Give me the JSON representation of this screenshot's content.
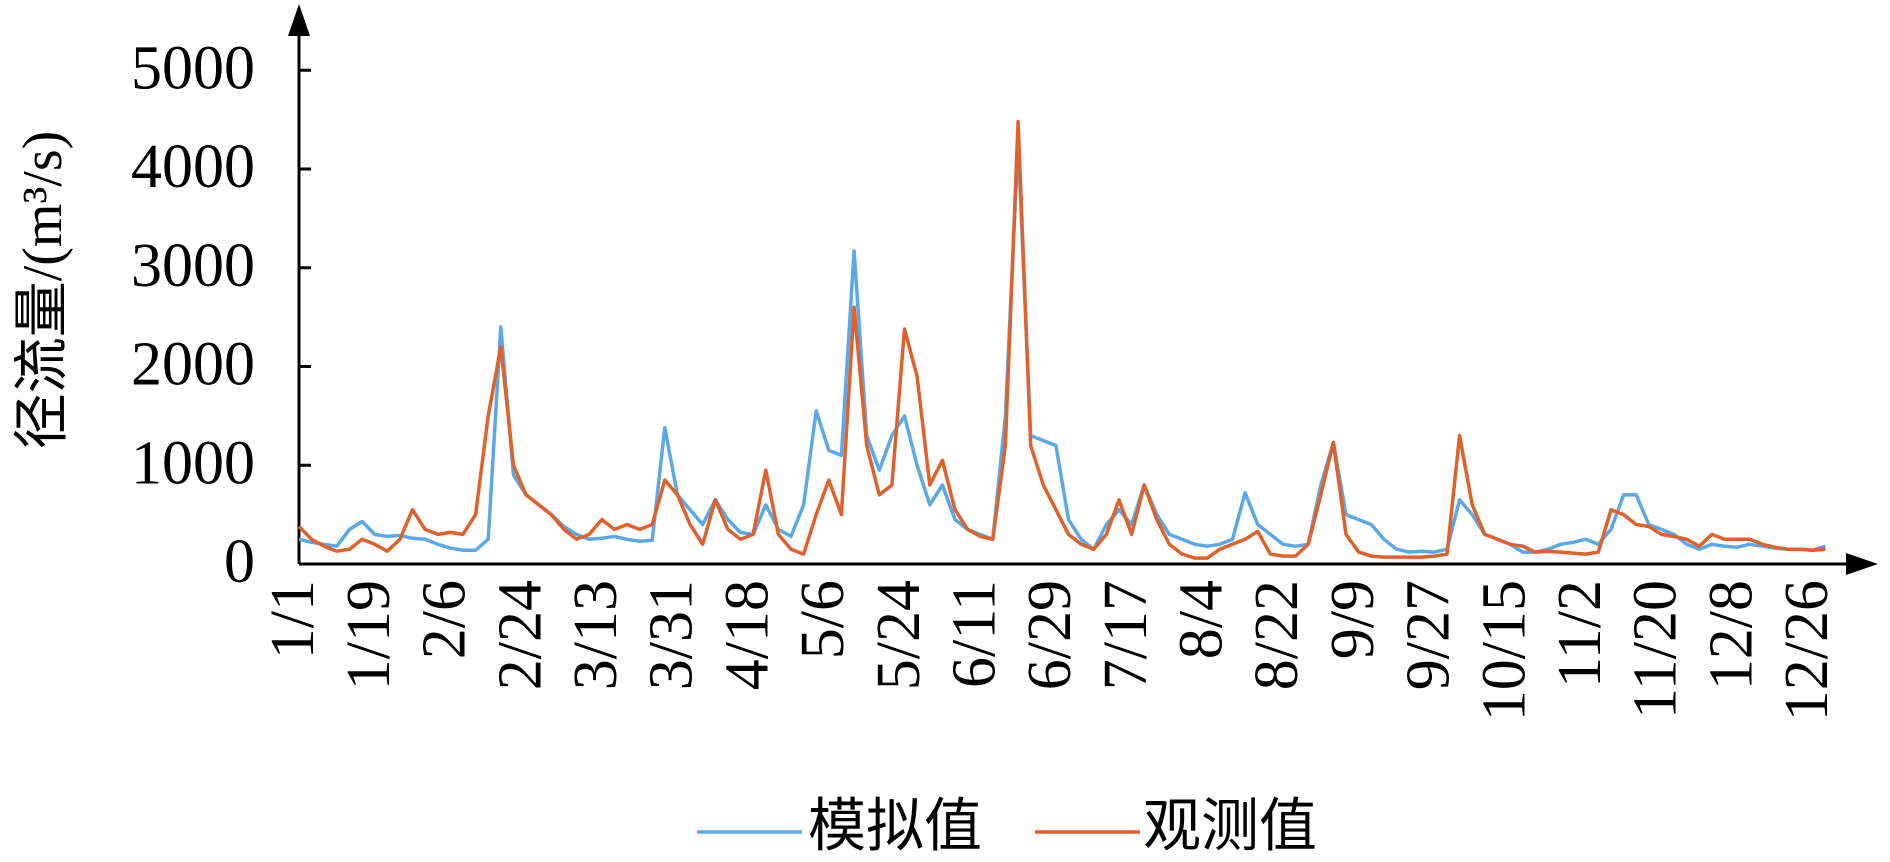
{
  "chart_data": {
    "type": "line",
    "y_label": "径流量/(m³/s)",
    "categories": [
      "1/1",
      null,
      null,
      null,
      null,
      null,
      "1/19",
      null,
      null,
      null,
      null,
      null,
      "2/6",
      null,
      null,
      null,
      null,
      null,
      "2/24",
      null,
      null,
      null,
      null,
      null,
      "3/13",
      null,
      null,
      null,
      null,
      null,
      "3/31",
      null,
      null,
      null,
      null,
      null,
      "4/18",
      null,
      null,
      null,
      null,
      null,
      "5/6",
      null,
      null,
      null,
      null,
      null,
      "5/24",
      null,
      null,
      null,
      null,
      null,
      "6/11",
      null,
      null,
      null,
      null,
      null,
      "6/29",
      null,
      null,
      null,
      null,
      null,
      "7/17",
      null,
      null,
      null,
      null,
      null,
      "8/4",
      null,
      null,
      null,
      null,
      null,
      "8/22",
      null,
      null,
      null,
      null,
      null,
      "9/9",
      null,
      null,
      null,
      null,
      null,
      "9/27",
      null,
      null,
      null,
      null,
      null,
      "10/15",
      null,
      null,
      null,
      null,
      null,
      "11/2",
      null,
      null,
      null,
      null,
      null,
      "11/20",
      null,
      null,
      null,
      null,
      null,
      "12/8",
      null,
      null,
      null,
      null,
      null,
      "12/26",
      null
    ],
    "series": [
      {
        "name": "模拟值",
        "color": "#5aa9e6",
        "values": [
          250,
          220,
          200,
          180,
          350,
          430,
          300,
          280,
          290,
          260,
          250,
          200,
          160,
          140,
          140,
          250,
          2400,
          900,
          700,
          600,
          500,
          380,
          300,
          250,
          260,
          280,
          250,
          230,
          240,
          1380,
          700,
          550,
          400,
          650,
          450,
          320,
          300,
          600,
          350,
          280,
          600,
          1550,
          1150,
          1100,
          3170,
          1300,
          950,
          1300,
          1500,
          1000,
          600,
          800,
          450,
          350,
          300,
          250,
          1500,
          4270,
          1300,
          1250,
          1200,
          450,
          250,
          150,
          400,
          550,
          400,
          800,
          500,
          300,
          250,
          200,
          180,
          200,
          250,
          720,
          400,
          300,
          200,
          180,
          200,
          800,
          1230,
          500,
          450,
          400,
          250,
          150,
          120,
          130,
          120,
          150,
          650,
          500,
          300,
          250,
          200,
          120,
          120,
          150,
          200,
          220,
          250,
          200,
          350,
          700,
          700,
          400,
          350,
          300,
          200,
          150,
          200,
          180,
          170,
          200,
          180,
          160,
          150,
          150,
          140,
          180
        ]
      },
      {
        "name": "观测值",
        "color": "#e0612b",
        "values": [
          380,
          250,
          180,
          130,
          150,
          250,
          200,
          130,
          250,
          550,
          350,
          300,
          320,
          300,
          500,
          1500,
          2200,
          1000,
          700,
          600,
          500,
          350,
          250,
          300,
          450,
          350,
          400,
          350,
          400,
          850,
          700,
          400,
          200,
          650,
          350,
          250,
          300,
          950,
          300,
          150,
          100,
          500,
          850,
          500,
          2600,
          1200,
          700,
          800,
          2380,
          1900,
          800,
          1050,
          550,
          350,
          280,
          250,
          1200,
          4480,
          1200,
          800,
          550,
          300,
          200,
          150,
          300,
          650,
          300,
          800,
          450,
          200,
          100,
          60,
          60,
          150,
          200,
          250,
          330,
          100,
          80,
          80,
          200,
          700,
          1230,
          300,
          120,
          80,
          70,
          70,
          70,
          70,
          80,
          100,
          1300,
          600,
          300,
          250,
          200,
          180,
          120,
          130,
          120,
          110,
          100,
          120,
          550,
          500,
          400,
          380,
          300,
          280,
          250,
          180,
          300,
          250,
          250,
          250,
          200,
          170,
          150,
          150,
          140,
          150
        ]
      }
    ],
    "ylim": [
      0,
      5600
    ],
    "yticks": [
      0,
      1000,
      2000,
      3000,
      4000,
      5000
    ]
  }
}
